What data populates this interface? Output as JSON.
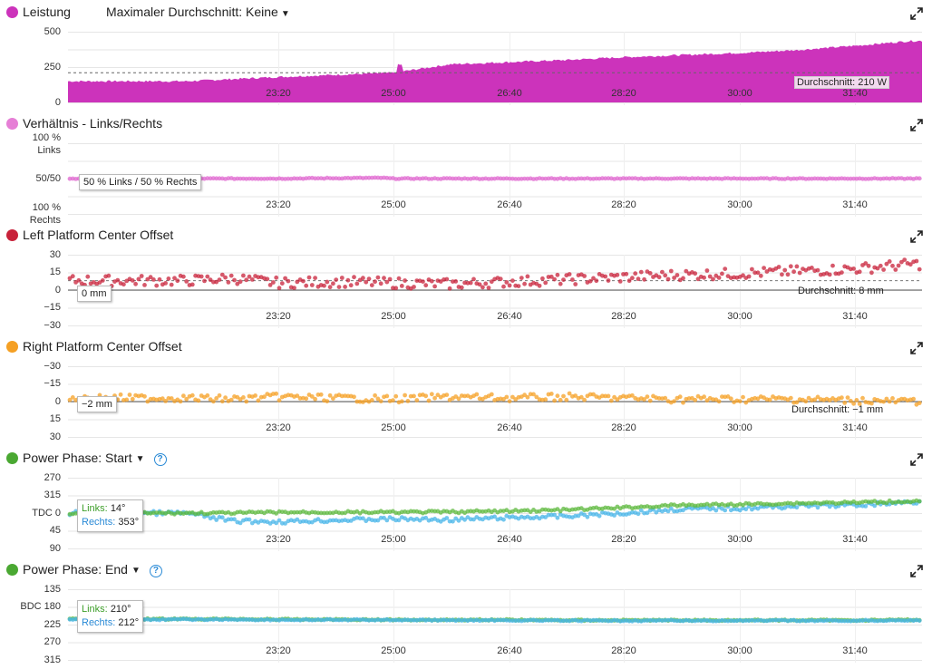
{
  "x_ticks": [
    "23:20",
    "25:00",
    "26:40",
    "28:20",
    "30:00",
    "31:40"
  ],
  "panels": [
    {
      "title": "Leistung",
      "color": "#cc33bb",
      "control_label": "Maximaler Durchschnitt: Keine",
      "y_ticks": [
        "500",
        "250",
        "0"
      ],
      "avg_label": "Durchschnitt: 210 W"
    },
    {
      "title": "Verhältnis - Links/Rechts",
      "color": "#e67fd6",
      "y_ticks": [
        "100 %",
        "Links",
        "50/50",
        "100 %",
        "Rechts"
      ],
      "tooltip": "50 % Links  / 50 % Rechts"
    },
    {
      "title": "Left Platform Center Offset",
      "color": "#c8223a",
      "y_ticks": [
        "30",
        "15",
        "0",
        "−15",
        "−30"
      ],
      "tooltip": "0 mm",
      "avg_label": "Durchschnitt: 8 mm"
    },
    {
      "title": "Right Platform Center Offset",
      "color": "#f5a024",
      "y_ticks": [
        "−30",
        "−15",
        "0",
        "15",
        "30"
      ],
      "tooltip": "−2 mm",
      "avg_label": "Durchschnitt: −1 mm"
    },
    {
      "title": "Power Phase: Start",
      "color": "#4aa832",
      "y_ticks": [
        "270",
        "315",
        "TDC 0",
        "45",
        "90"
      ],
      "tooltip_left_label": "Links:",
      "tooltip_left_value": "14°",
      "tooltip_right_label": "Rechts:",
      "tooltip_right_value": "353°"
    },
    {
      "title": "Power Phase: End",
      "color": "#4aa832",
      "y_ticks": [
        "135",
        "BDC 180",
        "225",
        "270",
        "315"
      ],
      "tooltip_left_label": "Links:",
      "tooltip_left_value": "210°",
      "tooltip_right_label": "Rechts:",
      "tooltip_right_value": "212°"
    }
  ],
  "chart_data": [
    {
      "type": "area",
      "title": "Leistung",
      "unit": "W",
      "x": [
        "22:00",
        "22:40",
        "23:20",
        "24:10",
        "25:00",
        "25:50",
        "26:40",
        "27:30",
        "28:20",
        "29:10",
        "30:00",
        "30:50",
        "31:40",
        "32:30"
      ],
      "values": [
        150,
        165,
        180,
        195,
        210,
        270,
        285,
        300,
        320,
        335,
        350,
        370,
        400,
        435
      ],
      "ylim": [
        0,
        500
      ],
      "average": 210
    },
    {
      "type": "scatter",
      "title": "Verhältnis - Links/Rechts",
      "x": [
        "22:00",
        "23:20",
        "24:50",
        "25:00",
        "26:40",
        "28:20",
        "30:00",
        "31:40",
        "32:30"
      ],
      "values": [
        50,
        50,
        51,
        50,
        50,
        50,
        50,
        50,
        50
      ]
    },
    {
      "type": "scatter",
      "title": "Left Platform Center Offset",
      "unit": "mm",
      "x": [
        "22:00",
        "22:40",
        "23:20",
        "24:10",
        "25:00",
        "25:50",
        "26:40",
        "27:30",
        "28:20",
        "29:10",
        "30:00",
        "30:50",
        "31:40",
        "32:30"
      ],
      "values": [
        8,
        10,
        6,
        7,
        6,
        5,
        7,
        9,
        11,
        13,
        14,
        16,
        18,
        22
      ],
      "ylim": [
        -30,
        30
      ],
      "average": 8
    },
    {
      "type": "scatter",
      "title": "Right Platform Center Offset",
      "unit": "mm",
      "x": [
        "22:00",
        "22:40",
        "23:20",
        "24:10",
        "25:00",
        "25:50",
        "26:40",
        "27:30",
        "28:20",
        "29:10",
        "30:00",
        "30:50",
        "31:40",
        "32:30"
      ],
      "values": [
        -3,
        -2,
        -4,
        -3,
        -2,
        -4,
        -3,
        -4,
        -3,
        -2,
        -2,
        -2,
        -1,
        0
      ],
      "ylim": [
        -30,
        30
      ],
      "average": -1
    },
    {
      "type": "scatter",
      "title": "Power Phase: Start",
      "unit": "°",
      "x": [
        "22:00",
        "22:40",
        "23:20",
        "24:10",
        "25:00",
        "25:50",
        "26:40",
        "27:30",
        "28:20",
        "29:10",
        "30:00",
        "30:50",
        "31:40",
        "32:30"
      ],
      "series": [
        {
          "name": "Links",
          "values": [
            0,
            0,
            -2,
            -2,
            -2,
            -3,
            -5,
            -8,
            -14,
            -20,
            -22,
            -25,
            -27,
            -30
          ]
        },
        {
          "name": "Rechts",
          "values": [
            0,
            20,
            22,
            18,
            15,
            17,
            12,
            8,
            0,
            -10,
            -12,
            -18,
            -20,
            -28
          ]
        }
      ],
      "ylim": [
        -90,
        90
      ]
    },
    {
      "type": "scatter",
      "title": "Power Phase: End",
      "unit": "°",
      "x": [
        "22:00",
        "22:40",
        "23:20",
        "24:10",
        "25:00",
        "25:50",
        "26:40",
        "27:30",
        "28:20",
        "29:10",
        "30:00",
        "30:50",
        "31:40",
        "32:30"
      ],
      "series": [
        {
          "name": "Links",
          "values": [
            211,
            211,
            212,
            212,
            213,
            213,
            213,
            214,
            214,
            214,
            214,
            214,
            214,
            213
          ]
        },
        {
          "name": "Rechts",
          "values": [
            212,
            212,
            213,
            213,
            213,
            214,
            214,
            215,
            215,
            215,
            215,
            215,
            215,
            214
          ]
        }
      ],
      "ylim": [
        135,
        315
      ]
    }
  ]
}
